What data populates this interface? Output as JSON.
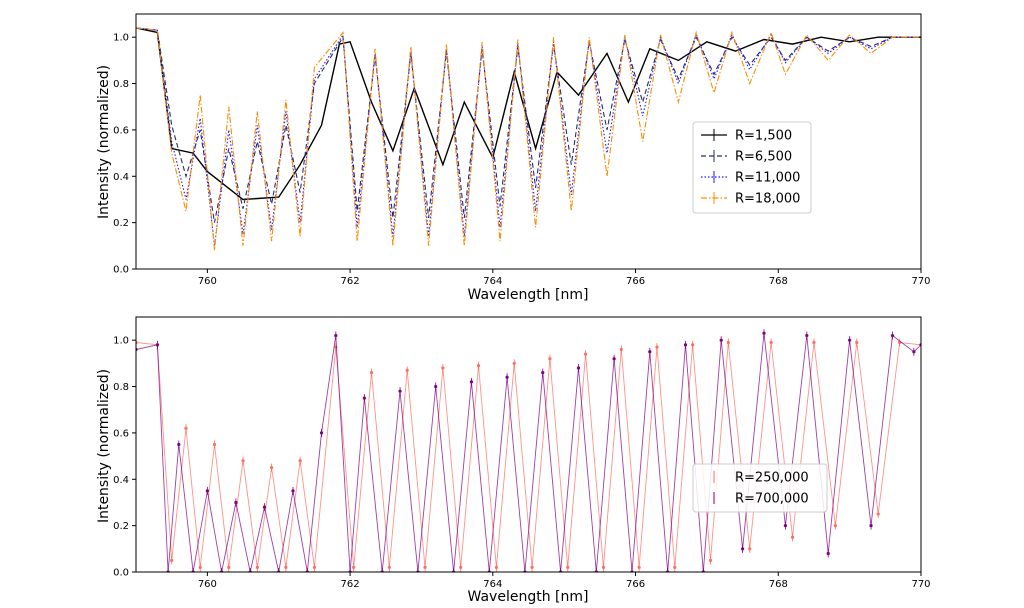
{
  "chart_data": [
    {
      "type": "line",
      "panel": "top",
      "title": "",
      "xlabel": "Wavelength [nm]",
      "ylabel": "Intensity (normalized)",
      "xlim": [
        759.0,
        770.0
      ],
      "ylim": [
        0.0,
        1.1
      ],
      "xticks": [
        760,
        762,
        764,
        766,
        768,
        770
      ],
      "yticks": [
        0.0,
        0.2,
        0.4,
        0.6,
        0.8,
        1.0
      ],
      "grid": false,
      "legend_position": "center-right",
      "series": [
        {
          "name": "R=1,500",
          "color": "#000000",
          "style": "solid",
          "marker": "errorbar",
          "x": [
            759.0,
            759.3,
            759.5,
            759.8,
            760.0,
            760.5,
            761.0,
            761.3,
            761.6,
            761.85,
            762.0,
            762.3,
            762.6,
            762.9,
            763.3,
            763.6,
            764.0,
            764.3,
            764.6,
            764.9,
            765.2,
            765.6,
            765.9,
            766.2,
            766.6,
            767.0,
            767.4,
            767.8,
            768.2,
            768.6,
            769.0,
            769.4,
            770.0
          ],
          "values": [
            1.04,
            1.02,
            0.52,
            0.5,
            0.42,
            0.3,
            0.31,
            0.45,
            0.62,
            0.97,
            0.98,
            0.72,
            0.51,
            0.78,
            0.45,
            0.72,
            0.48,
            0.85,
            0.52,
            0.85,
            0.75,
            0.93,
            0.72,
            0.95,
            0.9,
            0.98,
            0.94,
            0.99,
            0.97,
            1.0,
            0.98,
            1.0,
            1.0
          ]
        },
        {
          "name": "R=6,500",
          "color": "#2b2b66",
          "style": "dashed",
          "marker": "errorbar",
          "x": [
            759.0,
            759.3,
            759.5,
            759.7,
            759.9,
            760.1,
            760.3,
            760.5,
            760.7,
            760.9,
            761.1,
            761.3,
            761.5,
            761.9,
            762.1,
            762.35,
            762.6,
            762.85,
            763.1,
            763.35,
            763.6,
            763.85,
            764.1,
            764.35,
            764.6,
            764.85,
            765.1,
            765.35,
            765.6,
            765.85,
            766.1,
            766.35,
            766.6,
            766.85,
            767.1,
            767.35,
            767.6,
            767.9,
            768.1,
            768.4,
            768.7,
            769.0,
            769.3,
            769.6,
            770.0
          ],
          "values": [
            1.04,
            1.03,
            0.62,
            0.4,
            0.6,
            0.2,
            0.52,
            0.26,
            0.55,
            0.28,
            0.62,
            0.33,
            0.8,
            1.0,
            0.25,
            0.92,
            0.22,
            0.93,
            0.22,
            0.94,
            0.22,
            0.95,
            0.27,
            0.96,
            0.35,
            0.97,
            0.45,
            0.98,
            0.6,
            0.99,
            0.72,
            0.99,
            0.82,
            1.0,
            0.84,
            1.0,
            0.88,
            1.0,
            0.9,
            1.0,
            0.94,
            1.0,
            0.96,
            1.0,
            1.0
          ]
        },
        {
          "name": "R=11,000",
          "color": "#1a1aff",
          "style": "dotted",
          "marker": "errorbar",
          "x": [
            759.0,
            759.3,
            759.5,
            759.7,
            759.9,
            760.1,
            760.3,
            760.5,
            760.7,
            760.9,
            761.1,
            761.3,
            761.5,
            761.9,
            762.1,
            762.35,
            762.6,
            762.85,
            763.1,
            763.35,
            763.6,
            763.85,
            764.1,
            764.35,
            764.6,
            764.85,
            765.1,
            765.35,
            765.6,
            765.85,
            766.1,
            766.35,
            766.6,
            766.85,
            767.1,
            767.35,
            767.6,
            767.9,
            768.1,
            768.4,
            768.7,
            769.0,
            769.3,
            769.6,
            770.0
          ],
          "values": [
            1.04,
            1.03,
            0.55,
            0.3,
            0.65,
            0.1,
            0.6,
            0.15,
            0.62,
            0.17,
            0.68,
            0.2,
            0.82,
            1.01,
            0.18,
            0.93,
            0.14,
            0.94,
            0.14,
            0.95,
            0.14,
            0.96,
            0.18,
            0.97,
            0.25,
            0.98,
            0.32,
            0.99,
            0.5,
            1.0,
            0.66,
            1.0,
            0.8,
            1.01,
            0.82,
            1.01,
            0.86,
            1.01,
            0.89,
            1.0,
            0.93,
            1.0,
            0.95,
            1.0,
            1.0
          ]
        },
        {
          "name": "R=18,000",
          "color": "#ff8c00",
          "style": "dashdot",
          "marker": "errorbar",
          "x": [
            759.0,
            759.3,
            759.5,
            759.7,
            759.9,
            760.1,
            760.3,
            760.5,
            760.7,
            760.9,
            761.1,
            761.3,
            761.5,
            761.9,
            762.1,
            762.35,
            762.6,
            762.85,
            763.1,
            763.35,
            763.6,
            763.85,
            764.1,
            764.35,
            764.6,
            764.85,
            765.1,
            765.35,
            765.6,
            765.85,
            766.1,
            766.35,
            766.6,
            766.85,
            767.1,
            767.35,
            767.6,
            767.9,
            768.1,
            768.4,
            768.7,
            769.0,
            769.3,
            769.6,
            770.0
          ],
          "values": [
            1.04,
            1.03,
            0.5,
            0.25,
            0.75,
            0.08,
            0.7,
            0.1,
            0.68,
            0.12,
            0.73,
            0.14,
            0.87,
            1.02,
            0.12,
            0.95,
            0.1,
            0.96,
            0.1,
            0.97,
            0.1,
            0.98,
            0.12,
            0.99,
            0.18,
            1.0,
            0.25,
            1.0,
            0.4,
            1.01,
            0.55,
            1.01,
            0.72,
            1.02,
            0.76,
            1.02,
            0.8,
            1.02,
            0.84,
            1.01,
            0.9,
            1.01,
            0.93,
            1.0,
            1.0
          ]
        }
      ],
      "legend": [
        "R=1,500",
        "R=6,500",
        "R=11,000",
        "R=18,000"
      ]
    },
    {
      "type": "line",
      "panel": "bottom",
      "title": "",
      "xlabel": "Wavelength [nm]",
      "ylabel": "Intensity (normalized)",
      "xlim": [
        759.0,
        770.0
      ],
      "ylim": [
        0.0,
        1.1
      ],
      "xticks": [
        760,
        762,
        764,
        766,
        768,
        770
      ],
      "yticks": [
        0.0,
        0.2,
        0.4,
        0.6,
        0.8,
        1.0
      ],
      "grid": false,
      "legend_position": "center-right",
      "series": [
        {
          "name": "R=250,000",
          "color": "#ff6f61",
          "style": "markers",
          "marker": "errorbar",
          "x": [
            759.0,
            759.3,
            759.5,
            759.7,
            759.9,
            760.1,
            760.3,
            760.5,
            760.7,
            760.9,
            761.1,
            761.3,
            761.5,
            761.8,
            762.05,
            762.3,
            762.55,
            762.8,
            763.05,
            763.3,
            763.55,
            763.8,
            764.05,
            764.3,
            764.55,
            764.8,
            765.05,
            765.3,
            765.55,
            765.8,
            766.05,
            766.3,
            766.55,
            766.8,
            767.05,
            767.3,
            767.6,
            767.9,
            768.2,
            768.5,
            768.8,
            769.1,
            769.4,
            769.7,
            770.0
          ],
          "values": [
            0.99,
            0.98,
            0.05,
            0.62,
            0.02,
            0.55,
            0.02,
            0.48,
            0.02,
            0.45,
            0.02,
            0.48,
            0.02,
            0.97,
            0.02,
            0.86,
            0.02,
            0.87,
            0.02,
            0.88,
            0.02,
            0.89,
            0.02,
            0.9,
            0.02,
            0.92,
            0.02,
            0.94,
            0.02,
            0.96,
            0.02,
            0.97,
            0.02,
            0.98,
            0.05,
            0.99,
            0.1,
            0.99,
            0.15,
            0.99,
            0.2,
            0.99,
            0.25,
            0.99,
            0.98
          ]
        },
        {
          "name": "R=700,000",
          "color": "#800080",
          "style": "markers",
          "marker": "errorbar",
          "x": [
            759.0,
            759.3,
            759.45,
            759.6,
            759.8,
            760.0,
            760.2,
            760.4,
            760.6,
            760.8,
            761.0,
            761.2,
            761.4,
            761.6,
            761.8,
            762.0,
            762.2,
            762.45,
            762.7,
            762.95,
            763.2,
            763.45,
            763.7,
            763.95,
            764.2,
            764.45,
            764.7,
            764.95,
            765.2,
            765.45,
            765.7,
            765.95,
            766.2,
            766.45,
            766.7,
            766.95,
            767.2,
            767.5,
            767.8,
            768.1,
            768.4,
            768.7,
            769.0,
            769.3,
            769.6,
            769.9,
            770.0
          ],
          "values": [
            0.96,
            0.98,
            0.0,
            0.55,
            0.0,
            0.35,
            0.0,
            0.3,
            0.0,
            0.28,
            0.0,
            0.35,
            0.0,
            0.6,
            1.02,
            0.0,
            0.75,
            0.0,
            0.78,
            0.0,
            0.8,
            0.0,
            0.82,
            0.0,
            0.84,
            0.0,
            0.86,
            0.0,
            0.88,
            0.0,
            0.92,
            0.0,
            0.95,
            0.0,
            0.98,
            0.0,
            1.0,
            0.1,
            1.03,
            0.2,
            1.02,
            0.08,
            1.0,
            0.2,
            1.02,
            0.95,
            0.98
          ]
        }
      ],
      "legend": [
        "R=250,000",
        "R=700,000"
      ]
    }
  ]
}
